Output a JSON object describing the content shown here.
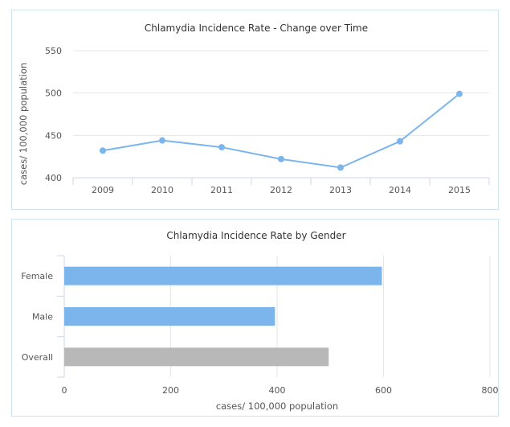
{
  "chart_data": [
    {
      "type": "line",
      "title": "Chlamydia Incidence Rate - Change over Time",
      "xlabel": "",
      "ylabel": "cases/ 100,000 population",
      "categories": [
        "2009",
        "2010",
        "2011",
        "2012",
        "2013",
        "2014",
        "2015"
      ],
      "series": [
        {
          "values": [
            432,
            444,
            436,
            422,
            412,
            443,
            499
          ]
        }
      ],
      "ylim": [
        400,
        550
      ],
      "yticks": [
        "400",
        "450",
        "500",
        "550"
      ],
      "grid": true,
      "legend": "none",
      "colors": {
        "line": "#7cb5ec",
        "grid": "#e6e6e6",
        "axis": "#ccd6eb"
      }
    },
    {
      "type": "bar",
      "orientation": "horizontal",
      "title": "Chlamydia Incidence Rate by Gender",
      "xlabel": "cases/ 100,000 population",
      "ylabel": "",
      "categories": [
        "Female",
        "Male",
        "Overall"
      ],
      "values": [
        597,
        396,
        497
      ],
      "xlim": [
        0,
        800
      ],
      "xticks": [
        "0",
        "200",
        "400",
        "600",
        "800"
      ],
      "grid": true,
      "legend": "none",
      "colors": {
        "bars": [
          "#7cb5ec",
          "#7cb5ec",
          "#b8b8b8"
        ],
        "grid": "#e6e6e6",
        "axis": "#ccd6eb"
      }
    }
  ]
}
